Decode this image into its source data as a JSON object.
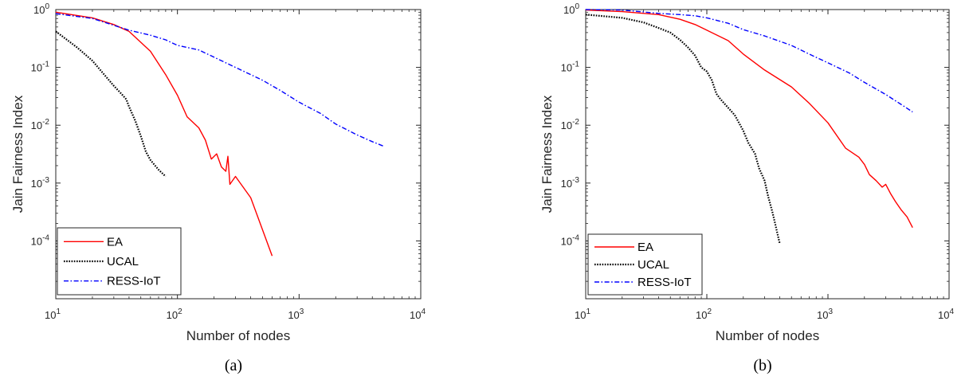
{
  "chart_data": [
    {
      "type": "line",
      "caption": "(a)",
      "xlabel": "Number of nodes",
      "ylabel": "Jain Fairness Index",
      "xscale": "log",
      "yscale": "log",
      "xlim": [
        10,
        10000
      ],
      "ylim": [
        1e-05,
        1
      ],
      "grid": false,
      "legend_position": "lower-left",
      "x_ticks": [
        {
          "base": "10",
          "exp": "1",
          "value": 10
        },
        {
          "base": "10",
          "exp": "2",
          "value": 100
        },
        {
          "base": "10",
          "exp": "3",
          "value": 1000
        },
        {
          "base": "10",
          "exp": "4",
          "value": 10000
        }
      ],
      "y_ticks": [
        {
          "base": "10",
          "exp": "0",
          "value": 1
        },
        {
          "base": "10",
          "exp": "-1",
          "value": 0.1
        },
        {
          "base": "10",
          "exp": "-2",
          "value": 0.01
        },
        {
          "base": "10",
          "exp": "-3",
          "value": 0.001
        },
        {
          "base": "10",
          "exp": "-4",
          "value": 0.0001
        }
      ],
      "series": [
        {
          "name": "EA",
          "color": "#ff0000",
          "style": "solid",
          "x": [
            10,
            20,
            30,
            40,
            60,
            80,
            100,
            120,
            150,
            170,
            190,
            210,
            230,
            250,
            260,
            270,
            300,
            400,
            600
          ],
          "y": [
            0.9,
            0.72,
            0.55,
            0.42,
            0.19,
            0.075,
            0.033,
            0.014,
            0.009,
            0.0055,
            0.0026,
            0.0032,
            0.0019,
            0.0016,
            0.0029,
            0.00095,
            0.0013,
            0.00056,
            5.5e-05
          ]
        },
        {
          "name": "UCAL",
          "color": "#000000",
          "style": "dotted",
          "x": [
            10,
            15,
            20,
            25,
            30,
            35,
            38,
            40,
            45,
            50,
            55,
            60,
            70,
            80
          ],
          "y": [
            0.42,
            0.22,
            0.13,
            0.075,
            0.048,
            0.034,
            0.028,
            0.021,
            0.012,
            0.0065,
            0.0035,
            0.0025,
            0.0017,
            0.0013
          ]
        },
        {
          "name": "RESS-IoT",
          "color": "#0000ff",
          "style": "dashdot",
          "x": [
            10,
            20,
            40,
            60,
            80,
            100,
            150,
            200,
            300,
            500,
            700,
            1000,
            1500,
            2000,
            3000,
            4000,
            5000
          ],
          "y": [
            0.85,
            0.7,
            0.44,
            0.36,
            0.3,
            0.24,
            0.2,
            0.15,
            0.1,
            0.06,
            0.04,
            0.025,
            0.016,
            0.0105,
            0.0068,
            0.0052,
            0.0043
          ]
        }
      ]
    },
    {
      "type": "line",
      "caption": "(b)",
      "xlabel": "Number of nodes",
      "ylabel": "Jain Fairness Index",
      "xscale": "log",
      "yscale": "log",
      "xlim": [
        10,
        10000
      ],
      "ylim": [
        1e-05,
        1
      ],
      "grid": false,
      "legend_position": "lower-left",
      "x_ticks": [
        {
          "base": "10",
          "exp": "1",
          "value": 10
        },
        {
          "base": "10",
          "exp": "2",
          "value": 100
        },
        {
          "base": "10",
          "exp": "3",
          "value": 1000
        },
        {
          "base": "10",
          "exp": "4",
          "value": 10000
        }
      ],
      "y_ticks": [
        {
          "base": "10",
          "exp": "0",
          "value": 1
        },
        {
          "base": "10",
          "exp": "-1",
          "value": 0.1
        },
        {
          "base": "10",
          "exp": "-2",
          "value": 0.01
        },
        {
          "base": "10",
          "exp": "-3",
          "value": 0.001
        },
        {
          "base": "10",
          "exp": "-4",
          "value": 0.0001
        }
      ],
      "series": [
        {
          "name": "EA",
          "color": "#ff0000",
          "style": "solid",
          "x": [
            10,
            20,
            40,
            60,
            80,
            100,
            150,
            200,
            300,
            500,
            700,
            1000,
            1400,
            1800,
            2000,
            2200,
            2500,
            2800,
            3000,
            3300,
            3600,
            4000,
            4500,
            5000
          ],
          "y": [
            0.98,
            0.92,
            0.82,
            0.68,
            0.55,
            0.44,
            0.29,
            0.17,
            0.09,
            0.046,
            0.024,
            0.011,
            0.004,
            0.0028,
            0.0021,
            0.0014,
            0.0011,
            0.00085,
            0.00095,
            0.00065,
            0.00048,
            0.00035,
            0.00026,
            0.00017
          ]
        },
        {
          "name": "UCAL",
          "color": "#000000",
          "style": "dotted",
          "x": [
            10,
            20,
            30,
            40,
            50,
            60,
            70,
            80,
            90,
            100,
            110,
            120,
            130,
            150,
            170,
            200,
            220,
            250,
            270,
            300,
            320,
            350,
            400
          ],
          "y": [
            0.82,
            0.72,
            0.6,
            0.48,
            0.4,
            0.3,
            0.22,
            0.16,
            0.1,
            0.085,
            0.06,
            0.035,
            0.028,
            0.02,
            0.015,
            0.008,
            0.005,
            0.0032,
            0.0018,
            0.0011,
            0.0006,
            0.0003,
            9e-05
          ]
        },
        {
          "name": "RESS-IoT",
          "color": "#0000ff",
          "style": "dashdot",
          "x": [
            10,
            20,
            40,
            60,
            80,
            100,
            150,
            200,
            300,
            500,
            700,
            1000,
            1500,
            2000,
            3000,
            4000,
            5000
          ],
          "y": [
            1,
            0.98,
            0.86,
            0.82,
            0.78,
            0.72,
            0.58,
            0.45,
            0.35,
            0.24,
            0.17,
            0.12,
            0.08,
            0.055,
            0.034,
            0.023,
            0.017
          ]
        }
      ]
    }
  ]
}
